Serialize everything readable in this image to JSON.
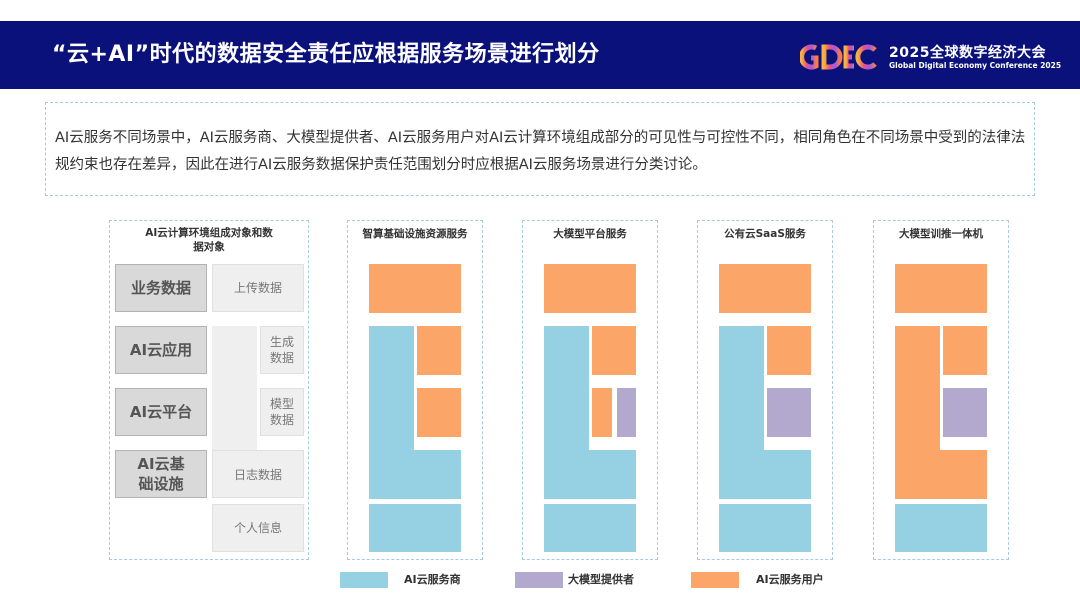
{
  "header": {
    "title": "“云+AI”时代的数据安全责任应根据服务场景进行划分",
    "logo_text": "GDEC",
    "event_title": "2025全球数字经济大会",
    "event_subtitle": "Global Digital Economy Conference 2025"
  },
  "intro": {
    "text": "AI云服务不同场景中，AI云服务商、大模型提供者、AI云服务用户对AI云计算环境组成部分的可见性与可控性不同，相同角色在不同场景中受到的法律法规约束也存在差异，因此在进行AI云服务数据保护责任范围划分时应根据AI云服务场景进行分类讨论。"
  },
  "components_panel": {
    "title": "AI云计算环境组成对象和数据对象",
    "layers": [
      "业务数据",
      "AI云应用",
      "AI云平台",
      "AI云基础设施"
    ],
    "data_objects": [
      "上传数据",
      "生成数据",
      "模型数据",
      "日志数据",
      "个人信息"
    ]
  },
  "scenarios": [
    {
      "title": "智算基础设施资源服务"
    },
    {
      "title": "大模型平台服务"
    },
    {
      "title": "公有云SaaS服务"
    },
    {
      "title": "大模型训推一体机"
    }
  ],
  "legend": [
    {
      "label": "AI云服务商",
      "color": "#95d0e3"
    },
    {
      "label": "大模型提供者",
      "color": "#b3a9cf"
    },
    {
      "label": "AI云服务用户",
      "color": "#fba668"
    }
  ],
  "colors": {
    "header_bg": "#0a117a",
    "provider": "#95d0e3",
    "model_provider": "#b3a9cf",
    "user": "#fba668",
    "gray": "#d9d9d9"
  }
}
